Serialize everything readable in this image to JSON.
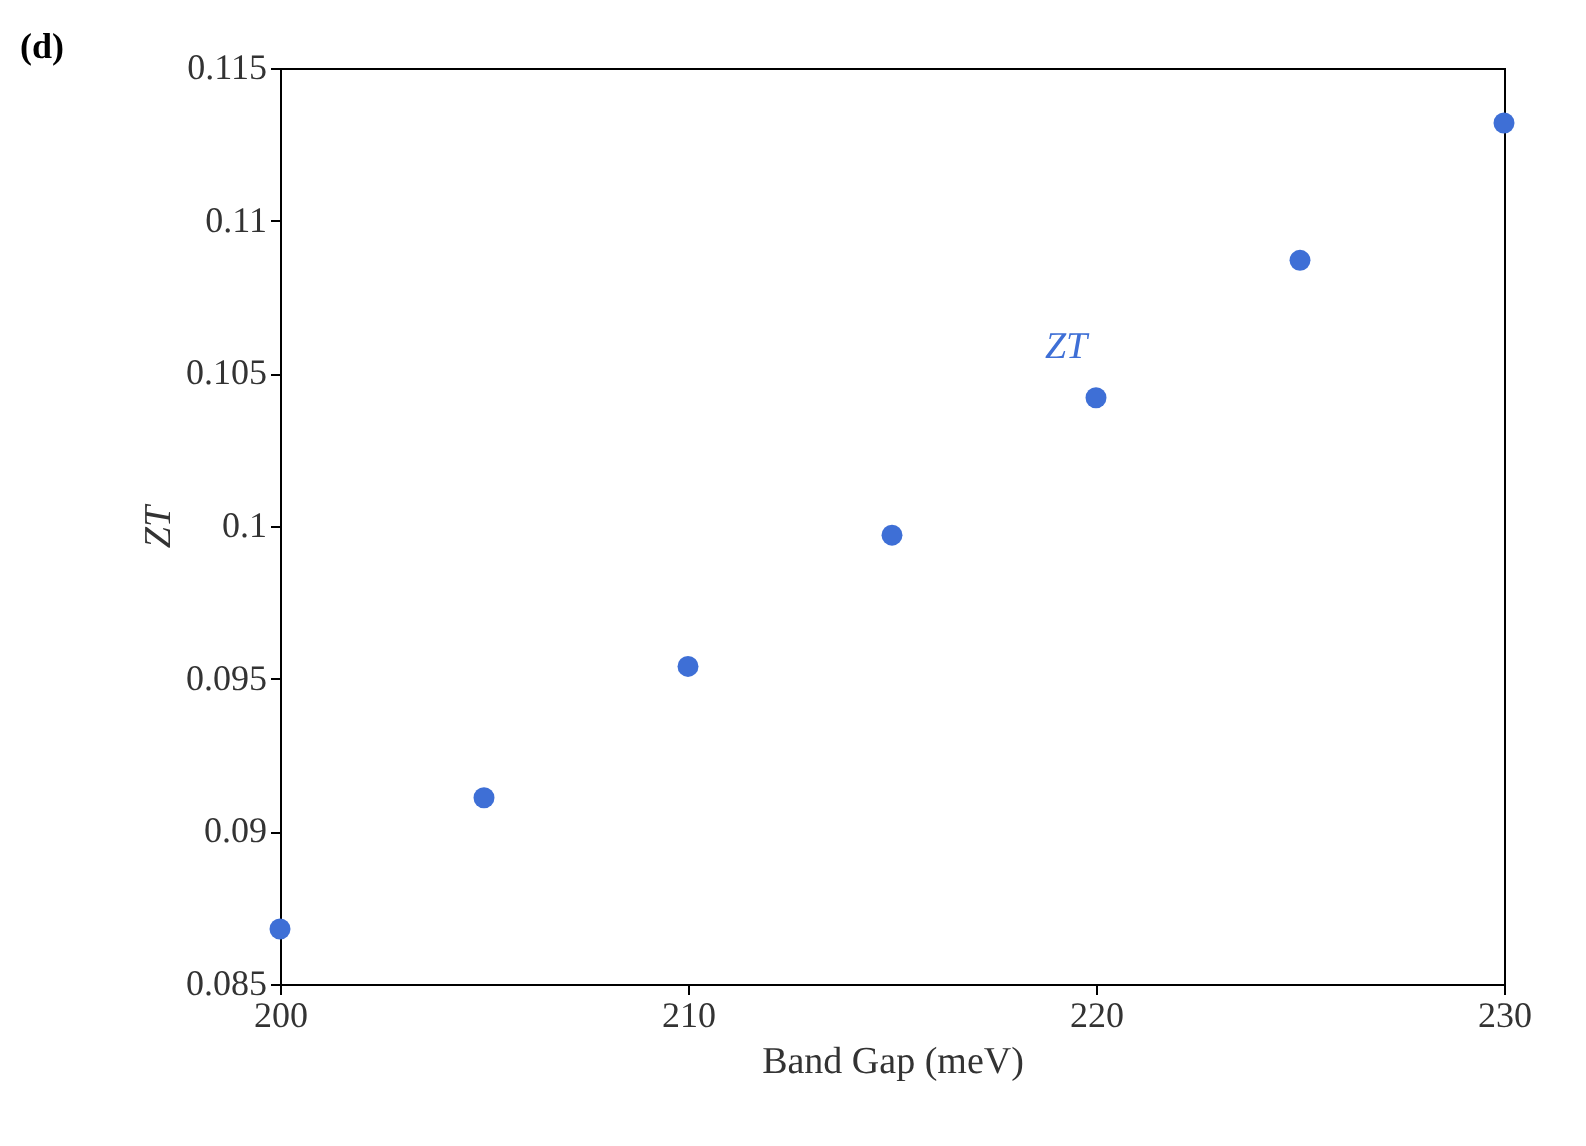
{
  "chart_data": {
    "type": "scatter",
    "title": "(d)",
    "xlabel": "Band Gap (meV)",
    "ylabel": "ZT",
    "x": [
      200,
      205,
      210,
      215,
      220,
      225,
      230
    ],
    "series": [
      {
        "name": "ZT",
        "color": "#3e6fd6",
        "values": [
          0.0868,
          0.0911,
          0.0954,
          0.0997,
          0.1042,
          0.1087,
          0.1132
        ]
      }
    ],
    "xlim": [
      200,
      230
    ],
    "xticks": [
      200,
      210,
      220,
      230
    ],
    "ylim": [
      0.085,
      0.115
    ],
    "yticks": [
      0.085,
      0.09,
      0.095,
      0.1,
      0.105,
      0.11,
      0.115
    ],
    "grid": false,
    "legend": false,
    "marker": "circle"
  }
}
